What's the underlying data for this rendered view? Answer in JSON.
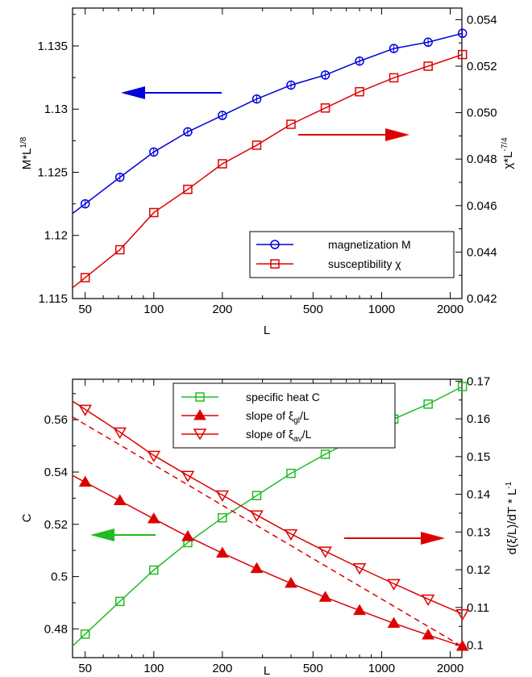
{
  "chart_data": [
    {
      "type": "line",
      "x_scale": "log",
      "xlabel": "L",
      "ylabel_left": "M*L^{1/8}",
      "ylabel_right": "χ*L^{-7/4}",
      "ylim_left": [
        1.115,
        1.138
      ],
      "ylim_right": [
        0.042,
        0.0545
      ],
      "xlim": [
        44,
        2250
      ],
      "x_ticks": [
        50,
        100,
        200,
        500,
        1000,
        2000
      ],
      "y_ticks_left": [
        1.115,
        1.12,
        1.125,
        1.13,
        1.135
      ],
      "y_ticks_right": [
        0.042,
        0.044,
        0.046,
        0.048,
        0.05,
        0.052,
        0.054
      ],
      "y_tick_labels_left": [
        "1.115",
        "1.12",
        "1.125",
        "1.13",
        "1.135"
      ],
      "y_tick_labels_right": [
        "0.042",
        "0.044",
        "0.046",
        "0.048",
        "0.050",
        "0.052",
        "0.054"
      ],
      "x": [
        50,
        71,
        100,
        141,
        200,
        283,
        400,
        566,
        800,
        1131,
        1600,
        2263
      ],
      "legend_position": "bottom-right",
      "series": [
        {
          "name": "magnetization M",
          "axis": "left",
          "color": "#0000dd",
          "marker": "circle",
          "values": [
            1.1225,
            1.1246,
            1.1266,
            1.1282,
            1.1295,
            1.1308,
            1.1319,
            1.1327,
            1.1338,
            1.1348,
            1.1353,
            1.136
          ]
        },
        {
          "name": "susceptibility χ",
          "axis": "right",
          "color": "#dd0000",
          "marker": "square",
          "values": [
            0.0429,
            0.0441,
            0.0457,
            0.0467,
            0.0478,
            0.0486,
            0.0495,
            0.0502,
            0.0509,
            0.0515,
            0.052,
            0.0525
          ]
        }
      ],
      "arrows": [
        {
          "direction": "left",
          "color": "#0000dd"
        },
        {
          "direction": "right",
          "color": "#dd0000"
        }
      ]
    },
    {
      "type": "line",
      "x_scale": "log",
      "xlabel": "L",
      "ylabel_left": "C",
      "ylabel_right": "d(ξ/L)/dT * L^{-1}",
      "ylim_left": [
        0.469,
        0.5755
      ],
      "ylim_right": [
        0.0967,
        0.1705
      ],
      "xlim": [
        44,
        2250
      ],
      "x_ticks": [
        50,
        100,
        200,
        500,
        1000,
        2000
      ],
      "y_ticks_left": [
        0.48,
        0.5,
        0.52,
        0.54,
        0.56
      ],
      "y_ticks_right": [
        0.1,
        0.11,
        0.12,
        0.13,
        0.14,
        0.15,
        0.16,
        0.17
      ],
      "y_tick_labels_left": [
        "0.48",
        "0.5",
        "0.52",
        "0.54",
        "0.56"
      ],
      "y_tick_labels_right": [
        "0.1",
        "0.11",
        "0.12",
        "0.13",
        "0.14",
        "0.15",
        "0.16",
        "0.17"
      ],
      "x": [
        50,
        71,
        100,
        141,
        200,
        283,
        400,
        566,
        800,
        1131,
        1600,
        2263
      ],
      "legend_position": "top-center",
      "series": [
        {
          "name": "specific heat C",
          "axis": "left",
          "color": "#22bb22",
          "marker": "square",
          "values": [
            0.478,
            0.4905,
            0.5025,
            0.513,
            0.5225,
            0.531,
            0.5395,
            0.5468,
            0.5535,
            0.5603,
            0.566,
            0.5727
          ]
        },
        {
          "name": "slope of ξ_gl/L",
          "axis": "right",
          "color": "#dd0000",
          "marker": "triangle-up-filled",
          "values": [
            0.1432,
            0.1383,
            0.1335,
            0.1288,
            0.1244,
            0.1203,
            0.1164,
            0.1127,
            0.1092,
            0.1058,
            0.1027,
            0.0997
          ],
          "fit": "solid"
        },
        {
          "name": "slope of ξ_av/L",
          "axis": "right",
          "color": "#dd0000",
          "marker": "triangle-down-open",
          "values": [
            0.1625,
            0.1565,
            0.1503,
            0.145,
            0.1398,
            0.1345,
            0.1295,
            0.1249,
            0.1205,
            0.1163,
            0.1122,
            0.1083
          ],
          "fit": "solid",
          "dashed_fit": [
            0.1605,
            0.0997
          ]
        }
      ],
      "arrows": [
        {
          "direction": "left",
          "color": "#22bb22"
        },
        {
          "direction": "right",
          "color": "#dd0000"
        }
      ]
    }
  ]
}
